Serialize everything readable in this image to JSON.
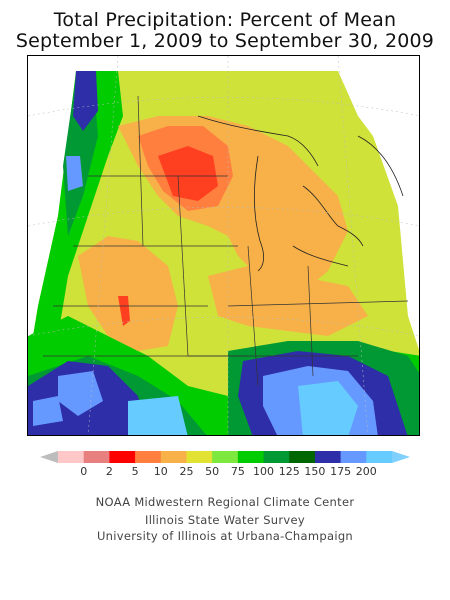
{
  "title": {
    "line1": "Total Precipitation: Percent of Mean",
    "line2": "September 1, 2009 to September 30, 2009"
  },
  "legend": {
    "ticks": [
      "0",
      "2",
      "5",
      "10",
      "25",
      "50",
      "75",
      "100",
      "125",
      "150",
      "175",
      "200"
    ],
    "colors": [
      "#ffc8c8",
      "#e88080",
      "#ff0000",
      "#ff7f3f",
      "#f7b148",
      "#e2e233",
      "#7fe83f",
      "#00cc00",
      "#009933",
      "#006600",
      "#2e2ea8",
      "#6699ff",
      "#66ccff"
    ]
  },
  "credits": {
    "line1": "NOAA Midwestern Regional Climate Center",
    "line2": "Illinois State Water Survey",
    "line3": "University of Illinois at Urbana-Champaign"
  }
}
